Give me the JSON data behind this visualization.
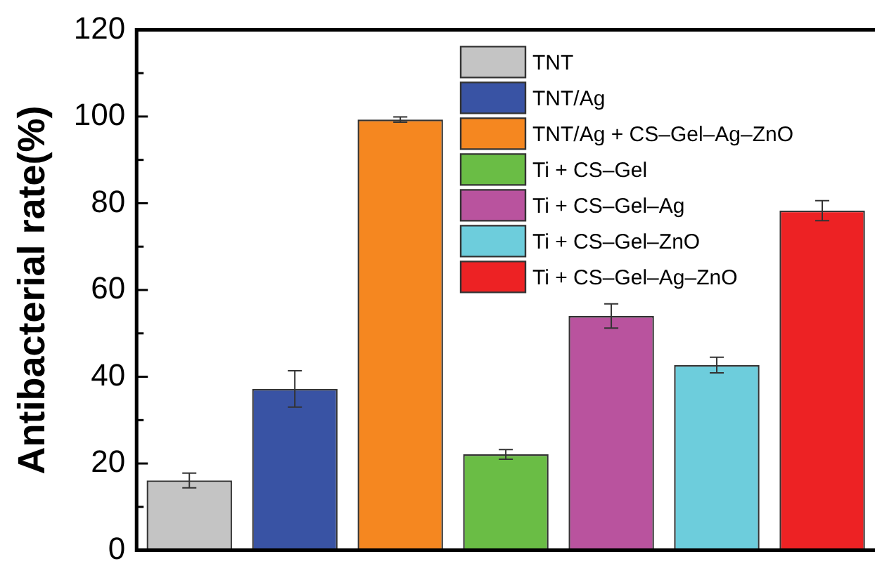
{
  "chart_data": {
    "type": "bar",
    "ylabel": "Antibacterial rate(%)",
    "categories": [
      null,
      null,
      null,
      null,
      null,
      null,
      null
    ],
    "series": [
      {
        "name": "TNT",
        "color": "#c4c4c4",
        "values": [
          16.1,
          null,
          null,
          null,
          null,
          null,
          null
        ],
        "errors": [
          1.7,
          null,
          null,
          null,
          null,
          null,
          null
        ]
      },
      {
        "name": "TNT/Ag",
        "color": "#3953a4",
        "values": [
          null,
          37.2,
          null,
          null,
          null,
          null,
          null
        ],
        "errors": [
          null,
          4.2,
          null,
          null,
          null,
          null,
          null
        ]
      },
      {
        "name": "TNT/Ag + CS–Gel–Ag–ZnO",
        "color": "#f58720",
        "values": [
          null,
          null,
          99.3,
          null,
          null,
          null,
          null
        ],
        "errors": [
          null,
          null,
          0.6,
          null,
          null,
          null,
          null
        ]
      },
      {
        "name": "Ti + CS–Gel",
        "color": "#6abd45",
        "values": [
          null,
          null,
          null,
          22.1,
          null,
          null,
          null
        ],
        "errors": [
          null,
          null,
          null,
          1.1,
          null,
          null,
          null
        ]
      },
      {
        "name": "Ti + CS–Gel–Ag",
        "color": "#b9539e",
        "values": [
          null,
          null,
          null,
          null,
          54.0,
          null,
          null
        ],
        "errors": [
          null,
          null,
          null,
          null,
          2.8,
          null,
          null
        ]
      },
      {
        "name": "Ti + CS–Gel–ZnO",
        "color": "#6dcddc",
        "values": [
          null,
          null,
          null,
          null,
          null,
          42.7,
          null
        ],
        "errors": [
          null,
          null,
          null,
          null,
          null,
          1.8,
          null
        ]
      },
      {
        "name": "Ti + CS–Gel–Ag–ZnO",
        "color": "#ed2224",
        "values": [
          null,
          null,
          null,
          null,
          null,
          null,
          78.3
        ],
        "errors": [
          null,
          null,
          null,
          null,
          null,
          null,
          2.3
        ]
      }
    ],
    "ylim": [
      0,
      120
    ],
    "yticks": [
      0,
      {
        "value": 10,
        "label": null
      },
      20,
      {
        "value": 30,
        "label": null
      },
      40,
      {
        "value": 50,
        "label": null
      },
      60,
      {
        "value": 70,
        "label": null
      },
      80,
      {
        "value": 90,
        "label": null
      },
      100,
      {
        "value": 110,
        "label": null
      },
      120
    ],
    "grid": false,
    "legend": "top right"
  }
}
